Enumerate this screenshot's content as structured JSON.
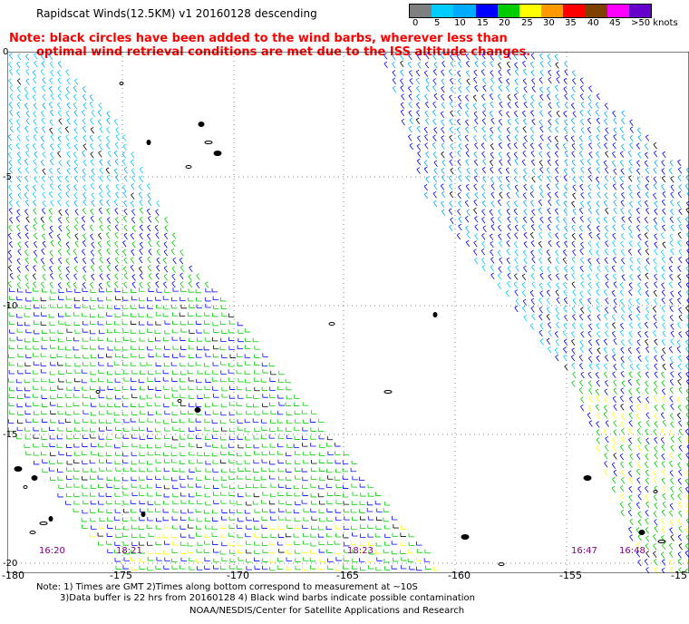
{
  "title": "Rapidscat Winds(12.5KM)  v1  20160128  descending",
  "notice": {
    "line1": "Note: black circles have been added to the wind barbs, wherever less than",
    "line2": "optimal wind retrieval conditions are met due to the ISS altitude changes."
  },
  "legend": {
    "labels": [
      "0",
      "5",
      "10",
      "15",
      "20",
      "25",
      "30",
      "35",
      "40",
      "45",
      ">50 knots"
    ],
    "colors": [
      "#7f7f7f",
      "#00ccff",
      "#00aaff",
      "#0000ff",
      "#00cc00",
      "#ffff00",
      "#ff9900",
      "#ff0000",
      "#7f3f00",
      "#ff00ff",
      "#6600cc"
    ]
  },
  "axes": {
    "lat_labels": [
      "0",
      "-5",
      "-10",
      "-15",
      "-20"
    ],
    "lon_labels": [
      "-180",
      "-175",
      "-170",
      "-165",
      "-160",
      "-155",
      "-15"
    ]
  },
  "pass_times": [
    "16:20",
    "18:21",
    "18:23",
    "16:47",
    "16:48"
  ],
  "footer": {
    "line1": "Note: 1) Times are GMT 2)Times along bottom correspond to measurement at ~10S",
    "line2": "3)Data buffer is 22 hrs from 20160128 4) Black wind barbs indicate possible contamination",
    "line3": "NOAA/NESDIS/Center for Satellite Applications and Research"
  },
  "colors": {
    "grid": "#888888",
    "notice": "#ff0000",
    "time_label": "#800080"
  }
}
